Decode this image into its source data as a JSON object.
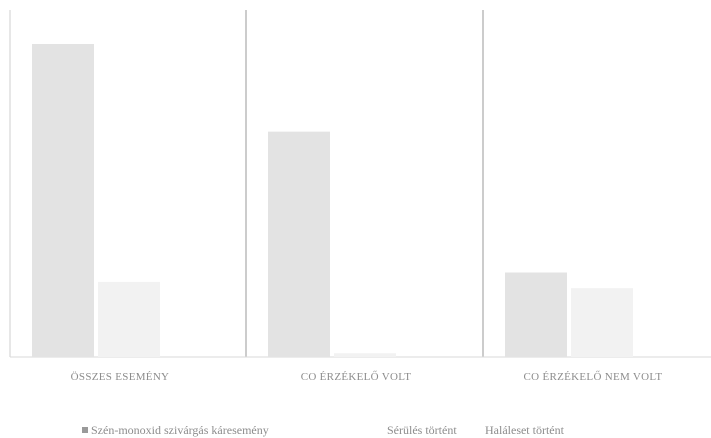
{
  "chart_data": {
    "type": "bar",
    "categories": [
      "ÖSSZES ESEMÉNY",
      "CO ÉRZÉKELŐ VOLT",
      "CO ÉRZÉKELŐ NEM VOLT"
    ],
    "series": [
      {
        "name": "Szén-monoxid szivárgás káresemény",
        "values": [
          100,
          72,
          27
        ],
        "color": "#e3e3e3"
      },
      {
        "name": "Sérülés történt",
        "values": [
          24,
          1.2,
          22
        ],
        "color": "#f2f2f2"
      },
      {
        "name": "Haláleset történt",
        "values": [
          0,
          0,
          0
        ],
        "color": "#ebebeb"
      }
    ],
    "ylim": [
      0,
      100
    ],
    "legend_position": "bottom",
    "grid": false
  }
}
